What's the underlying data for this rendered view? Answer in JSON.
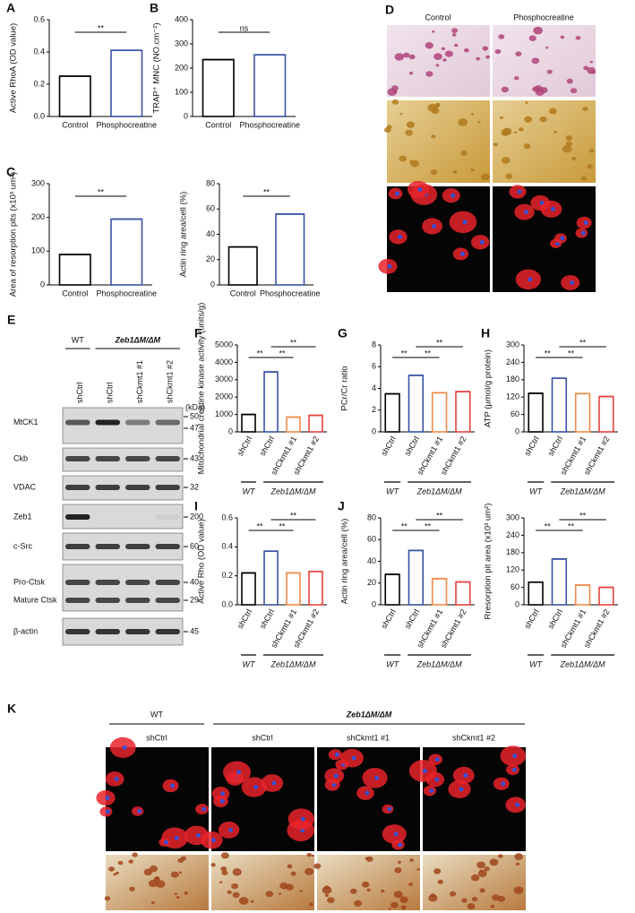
{
  "chart_data": [
    {
      "type": "bar",
      "panel": "A",
      "y_label": "Active RhoA (OD value)",
      "categories": [
        "Control",
        "Phosphocreatine"
      ],
      "values": [
        0.25,
        0.41
      ],
      "colors": [
        "#000000",
        "#3a53a4"
      ],
      "ylim": [
        0,
        0.6
      ],
      "yticks": [
        {
          "value": 0,
          "label": "0.0"
        },
        0.2,
        0.4,
        0.6
      ],
      "significance": [
        {
          "label": "**",
          "pair": [
            0,
            1
          ]
        }
      ]
    },
    {
      "type": "bar",
      "panel": "B",
      "y_label": "TRAP⁺ MNC (NO.cm⁻²)",
      "categories": [
        "Control",
        "Phosphocreatine"
      ],
      "values": [
        235,
        255
      ],
      "colors": [
        "#000000",
        "#3a53a4"
      ],
      "ylim": [
        0,
        400
      ],
      "yticks": [
        0,
        100,
        200,
        300,
        400
      ],
      "significance": [
        {
          "label": "ns",
          "pair": [
            0,
            1
          ]
        }
      ]
    },
    {
      "type": "bar",
      "panel": "C",
      "y_label": "Area of resorption pits (x10³ um²)",
      "categories": [
        "Control",
        "Phosphocreatine"
      ],
      "values": [
        90,
        195
      ],
      "colors": [
        "#000000",
        "#3a53a4"
      ],
      "ylim": [
        0,
        300
      ],
      "yticks": [
        0,
        100,
        200,
        300
      ],
      "significance": [
        {
          "label": "**",
          "pair": [
            0,
            1
          ]
        }
      ]
    },
    {
      "type": "bar",
      "y_label": "Actin ring area/cell (%)",
      "categories": [
        "Control",
        "Phosphocreatine"
      ],
      "values": [
        30,
        56
      ],
      "colors": [
        "#000000",
        "#3a53a4"
      ],
      "ylim": [
        0,
        80
      ],
      "yticks": [
        0,
        20,
        40,
        60,
        80
      ],
      "significance": [
        {
          "label": "**",
          "pair": [
            0,
            1
          ]
        }
      ]
    },
    {
      "type": "bar",
      "panel": "F",
      "y_label": "Mitochondrial creatine kinase activity (units/g)",
      "categories": [
        "shCtrl",
        "shCtrl",
        "shCkmt1 #1",
        "shCkmt1 #2"
      ],
      "values": [
        1000,
        3450,
        850,
        950
      ],
      "colors": [
        "#000000",
        "#3a53a4",
        "#f08a4b",
        "#e8423f"
      ],
      "ylim": [
        0,
        5000
      ],
      "yticks": [
        0,
        1000,
        2000,
        3000,
        4000,
        5000
      ],
      "groups": [
        {
          "name": "WT",
          "size": 1
        },
        {
          "name": "Zeb1ΔM/ΔM",
          "size": 3
        }
      ],
      "significance": [
        {
          "label": "**",
          "pair": [
            1,
            3
          ]
        },
        {
          "label": "**",
          "pair": [
            0,
            1
          ]
        },
        {
          "label": "**",
          "pair": [
            1,
            2
          ]
        }
      ]
    },
    {
      "type": "bar",
      "panel": "G",
      "y_label": "PCr/Cr ratio",
      "categories": [
        "shCtrl",
        "shCtrl",
        "shCkmt1 #1",
        "shCkmt1 #2"
      ],
      "values": [
        3.5,
        5.2,
        3.6,
        3.7
      ],
      "colors": [
        "#000000",
        "#3a53a4",
        "#f08a4b",
        "#e8423f"
      ],
      "ylim": [
        0,
        8
      ],
      "yticks": [
        0,
        2,
        4,
        6,
        8
      ],
      "groups": [
        {
          "name": "WT",
          "size": 1
        },
        {
          "name": "Zeb1ΔM/ΔM",
          "size": 3
        }
      ],
      "significance": [
        {
          "label": "**",
          "pair": [
            1,
            3
          ]
        },
        {
          "label": "**",
          "pair": [
            0,
            1
          ]
        },
        {
          "label": "**",
          "pair": [
            1,
            2
          ]
        }
      ]
    },
    {
      "type": "bar",
      "panel": "H",
      "y_label": "ATP (μmol/g protein)",
      "categories": [
        "shCtrl",
        "shCtrl",
        "shCkmt1 #1",
        "shCkmt1 #2"
      ],
      "values": [
        133,
        185,
        132,
        122
      ],
      "colors": [
        "#000000",
        "#3a53a4",
        "#f08a4b",
        "#e8423f"
      ],
      "ylim": [
        0,
        300
      ],
      "yticks": [
        0,
        60,
        120,
        180,
        240,
        300
      ],
      "groups": [
        {
          "name": "WT",
          "size": 1
        },
        {
          "name": "Zeb1ΔM/ΔM",
          "size": 3
        }
      ],
      "significance": [
        {
          "label": "**",
          "pair": [
            1,
            3
          ]
        },
        {
          "label": "**",
          "pair": [
            0,
            1
          ]
        },
        {
          "label": "**",
          "pair": [
            1,
            2
          ]
        }
      ]
    },
    {
      "type": "bar",
      "panel": "I",
      "y_label": "Active Rho (OD value)",
      "categories": [
        "shCtrl",
        "shCtrl",
        "shCkmt1 #1",
        "shCkmt1 #2"
      ],
      "values": [
        0.22,
        0.37,
        0.22,
        0.23
      ],
      "colors": [
        "#000000",
        "#3a53a4",
        "#f08a4b",
        "#e8423f"
      ],
      "ylim": [
        0,
        0.6
      ],
      "yticks": [
        {
          "value": 0,
          "label": "0.0"
        },
        0.2,
        0.4,
        0.6
      ],
      "groups": [
        {
          "name": "WT",
          "size": 1
        },
        {
          "name": "Zeb1ΔM/ΔM",
          "size": 3
        }
      ],
      "significance": [
        {
          "label": "**",
          "pair": [
            1,
            3
          ]
        },
        {
          "label": "**",
          "pair": [
            0,
            1
          ]
        },
        {
          "label": "**",
          "pair": [
            1,
            2
          ]
        }
      ]
    },
    {
      "type": "bar",
      "panel": "J",
      "y_label": "Actin ring area/cell (%)",
      "categories": [
        "shCtrl",
        "shCtrl",
        "shCkmt1 #1",
        "shCkmt1 #2"
      ],
      "values": [
        28,
        50,
        24,
        21
      ],
      "colors": [
        "#000000",
        "#3a53a4",
        "#f08a4b",
        "#e8423f"
      ],
      "ylim": [
        0,
        80
      ],
      "yticks": [
        0,
        20,
        40,
        60,
        80
      ],
      "groups": [
        {
          "name": "WT",
          "size": 1
        },
        {
          "name": "Zeb1ΔM/ΔM",
          "size": 3
        }
      ],
      "significance": [
        {
          "label": "**",
          "pair": [
            1,
            3
          ]
        },
        {
          "label": "**",
          "pair": [
            0,
            1
          ]
        },
        {
          "label": "**",
          "pair": [
            1,
            2
          ]
        }
      ]
    },
    {
      "type": "bar",
      "y_label": "Rresorption pit area (x10³ um²)",
      "categories": [
        "shCtrl",
        "shCtrl",
        "shCkmt1 #1",
        "shCkmt1 #2"
      ],
      "values": [
        78,
        158,
        68,
        60
      ],
      "colors": [
        "#000000",
        "#3a53a4",
        "#f08a4b",
        "#e8423f"
      ],
      "ylim": [
        0,
        300
      ],
      "yticks": [
        0,
        60,
        120,
        180,
        240,
        300
      ],
      "groups": [
        {
          "name": "WT",
          "size": 1
        },
        {
          "name": "Zeb1ΔM/ΔM",
          "size": 3
        }
      ],
      "significance": [
        {
          "label": "**",
          "pair": [
            1,
            3
          ]
        },
        {
          "label": "**",
          "pair": [
            0,
            1
          ]
        },
        {
          "label": "**",
          "pair": [
            1,
            2
          ]
        }
      ]
    }
  ],
  "micrographs_d": {
    "panel": "D",
    "columns": [
      "Control",
      "Phosphocreatine"
    ]
  },
  "blot": {
    "panel": "E",
    "groups": [
      "WT",
      "Zeb1ΔM/ΔM"
    ],
    "lanes": [
      "shCtrl",
      "shCtrl",
      "shCkmt1 #1",
      "shCkmt1 #2"
    ],
    "unit": "(kDa)",
    "rows": [
      {
        "protein": "MtCK1",
        "kda": [
          "50",
          "47"
        ]
      },
      {
        "protein": "Ckb",
        "kda": [
          "43"
        ]
      },
      {
        "protein": "VDAC",
        "kda": [
          "32"
        ]
      },
      {
        "protein": "Zeb1",
        "kda": [
          "200"
        ]
      },
      {
        "protein": "c-Src",
        "kda": [
          "60"
        ]
      },
      {
        "protein": "Pro-Ctsk",
        "kda": [
          "40"
        ]
      },
      {
        "protein": "Mature Ctsk",
        "kda": [
          "29"
        ]
      },
      {
        "protein": "β-actin",
        "kda": [
          "45"
        ]
      }
    ]
  },
  "micrographs_k": {
    "panel": "K",
    "groups": [
      "WT",
      "Zeb1ΔM/ΔM"
    ],
    "columns": [
      "shCtrl",
      "shCtrl",
      "shCkmt1 #1",
      "shCkmt1 #2"
    ]
  }
}
